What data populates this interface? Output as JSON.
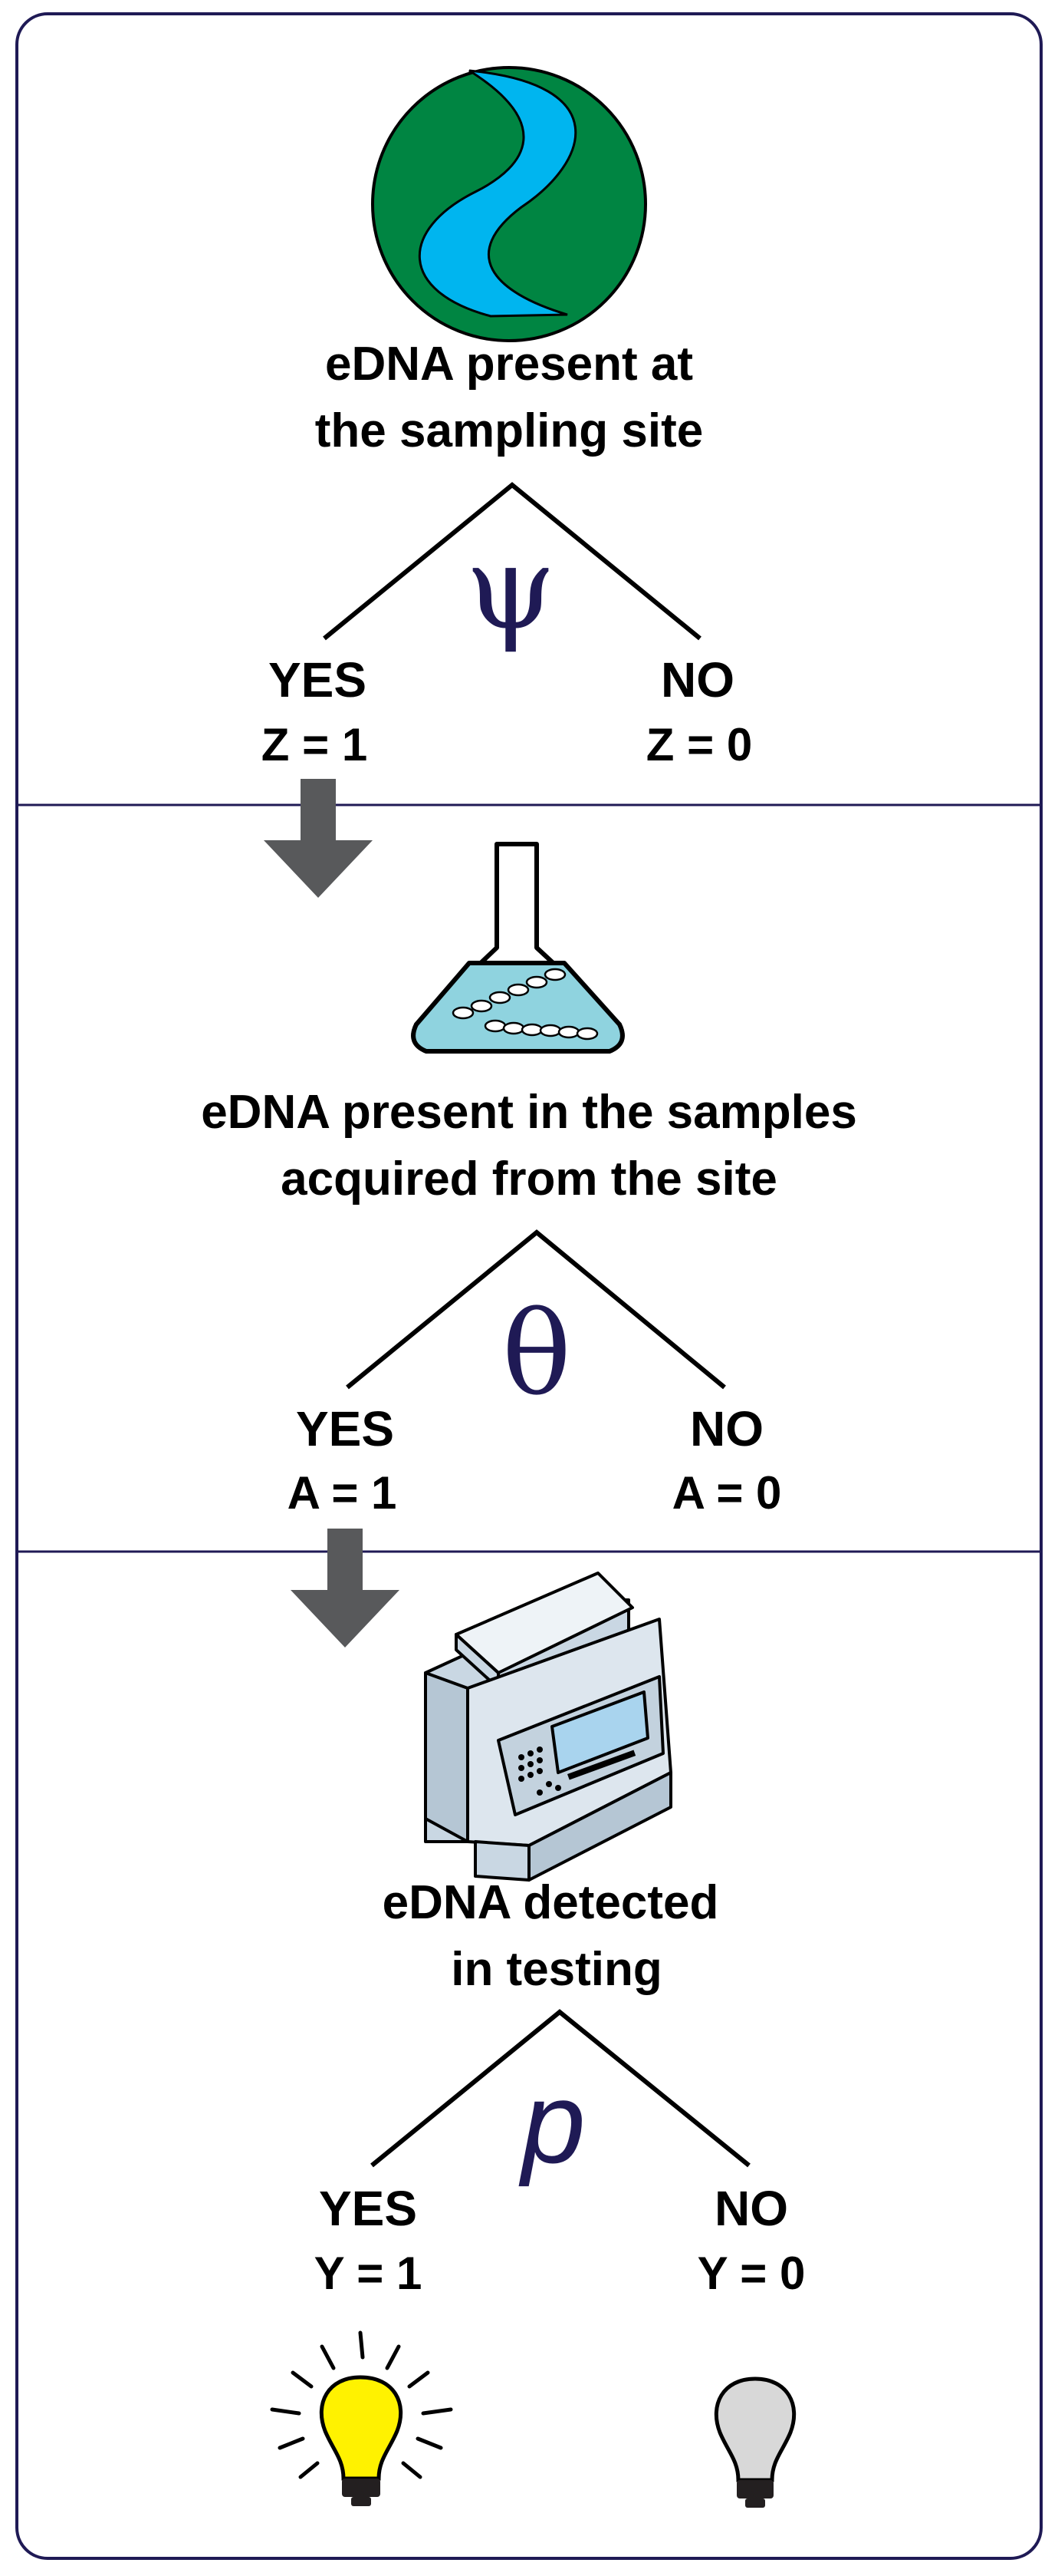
{
  "colors": {
    "frame": "#1f1a55",
    "divider": "#1f1a55",
    "greek_letters": "#1f1a55",
    "globe_green": "#008542",
    "river_blue": "#00b5ef",
    "flask_liquid": "#8fd3df",
    "arrow_gray": "#58595b",
    "bulb_lit": "#fff200",
    "bulb_unlit": "#d8d8d8",
    "machine_body": "#dde6ee",
    "machine_screen": "#a9d4ee"
  },
  "stages": [
    {
      "icon": "globe-river-icon",
      "title_lines": [
        "eDNA present at",
        "the sampling site"
      ],
      "parameter": "ψ",
      "yes": {
        "label": "YES",
        "value": "Z = 1"
      },
      "no": {
        "label": "NO",
        "value": "Z = 0"
      }
    },
    {
      "icon": "flask-dna-icon",
      "title_lines": [
        "eDNA present in the samples",
        "acquired from the site"
      ],
      "parameter": "θ",
      "yes": {
        "label": "YES",
        "value": "A = 1"
      },
      "no": {
        "label": "NO",
        "value": "A = 0"
      }
    },
    {
      "icon": "pcr-machine-icon",
      "title_lines": [
        "eDNA detected",
        "in testing"
      ],
      "parameter": "p",
      "yes": {
        "label": "YES",
        "value": "Y = 1"
      },
      "no": {
        "label": "NO",
        "value": "Y = 0"
      }
    }
  ],
  "outcome_icons": {
    "yes": "lit-lightbulb-icon",
    "no": "unlit-lightbulb-icon"
  }
}
